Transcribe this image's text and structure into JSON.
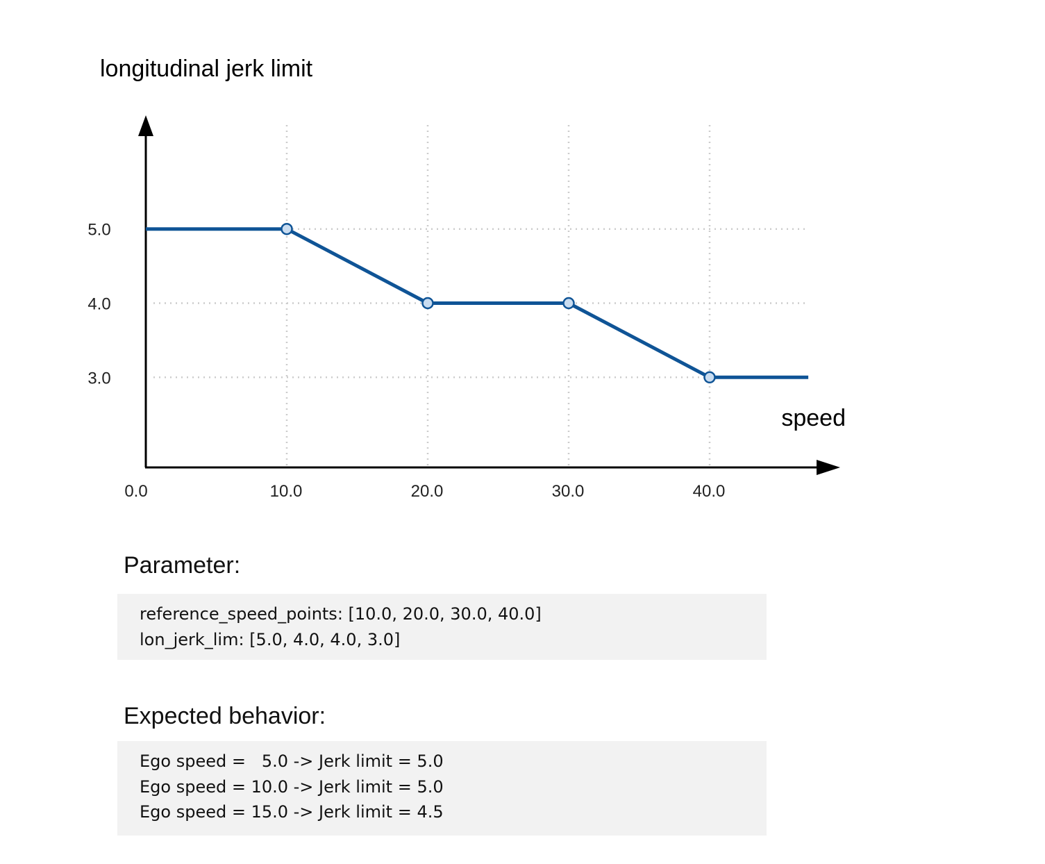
{
  "chart_data": {
    "type": "line",
    "ylabel": "longitudinal jerk limit",
    "xlabel": "speed",
    "x_ticks": [
      "0.0",
      "10.0",
      "20.0",
      "30.0",
      "40.0"
    ],
    "y_ticks": [
      "3.0",
      "4.0",
      "5.0"
    ],
    "xlim": [
      0,
      47
    ],
    "ylim": [
      0,
      5.5
    ],
    "grid": true,
    "series": [
      {
        "x": [
          0.0,
          10.0,
          20.0,
          30.0,
          40.0,
          47.0
        ],
        "y": [
          5.0,
          5.0,
          4.0,
          4.0,
          3.0,
          3.0
        ],
        "markers_at_x": [
          10.0,
          20.0,
          30.0,
          40.0
        ]
      }
    ],
    "line_color": "#0f5496",
    "marker_fill": "#c9dcf0"
  },
  "parameter": {
    "title": "Parameter:",
    "lines": [
      "reference_speed_points: [10.0, 20.0, 30.0, 40.0]",
      "lon_jerk_lim: [5.0, 4.0, 4.0, 3.0]"
    ]
  },
  "behavior": {
    "title": "Expected behavior:",
    "lines": [
      "Ego speed =   5.0 -> Jerk limit = 5.0",
      "Ego speed = 10.0 -> Jerk limit = 5.0",
      "Ego speed = 15.0 -> Jerk limit = 4.5"
    ]
  }
}
